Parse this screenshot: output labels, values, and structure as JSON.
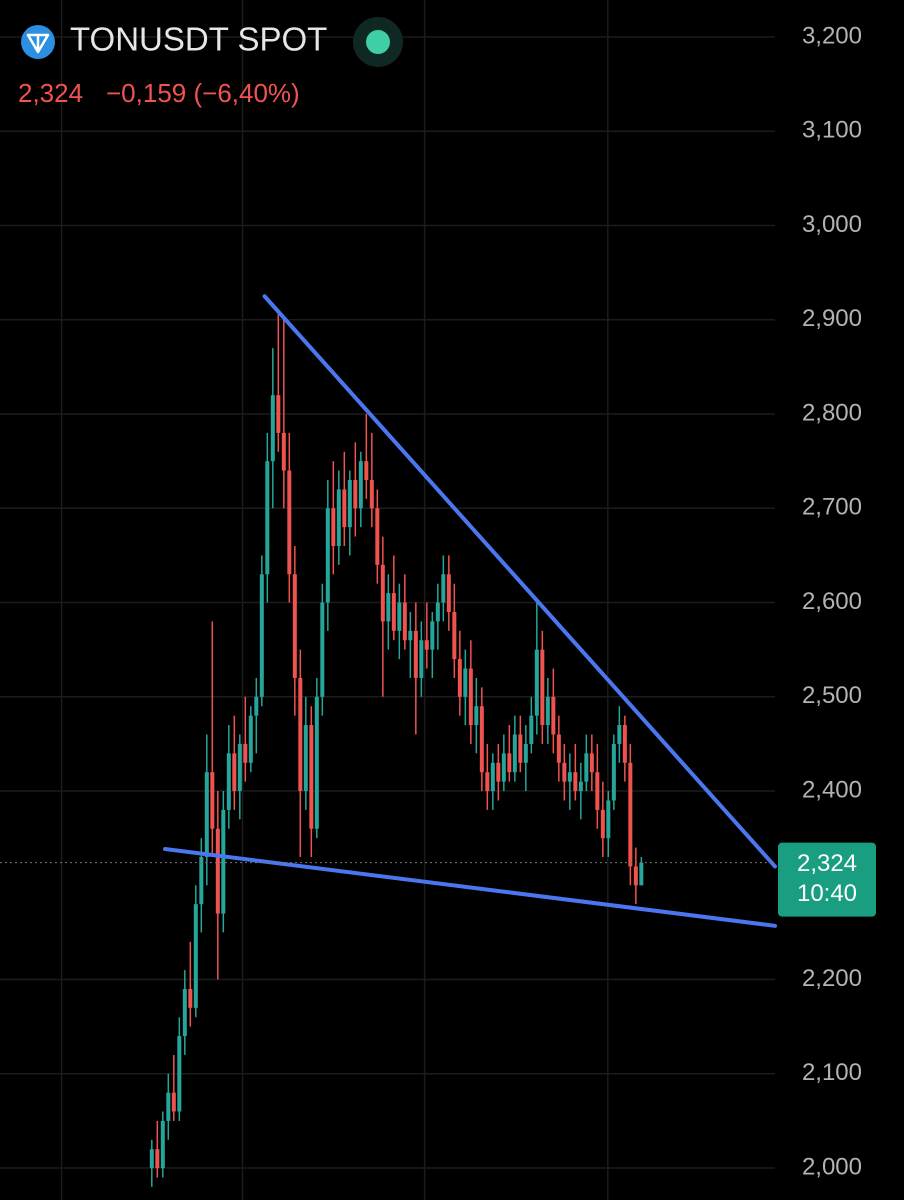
{
  "header": {
    "symbol": "TONUSDT SPOT",
    "price": "2,324",
    "change": "−0,159 (−6,40%)"
  },
  "chart_data": {
    "type": "candlestick",
    "ylim": [
      1.9661,
      3.2393
    ],
    "xlim": [
      -27.6,
      113.3
    ],
    "yticks": [
      {
        "value": 3.2,
        "label": "3,200"
      },
      {
        "value": 3.1,
        "label": "3,100"
      },
      {
        "value": 3.0,
        "label": "3,000"
      },
      {
        "value": 2.9,
        "label": "2,900"
      },
      {
        "value": 2.8,
        "label": "2,800"
      },
      {
        "value": 2.7,
        "label": "2,700"
      },
      {
        "value": 2.6,
        "label": "2,600"
      },
      {
        "value": 2.5,
        "label": "2,500"
      },
      {
        "value": 2.4,
        "label": "2,400"
      },
      {
        "value": 2.2,
        "label": "2,200"
      },
      {
        "value": 2.1,
        "label": "2,100"
      },
      {
        "value": 2.0,
        "label": "2,000"
      }
    ],
    "xgrid": [
      -16.4,
      16.5,
      49.6,
      82.9
    ],
    "grid": true,
    "up_color": "#26a69a",
    "down_color": "#ef5350",
    "ohlc": [
      [
        2.0,
        2.03,
        1.98,
        2.02
      ],
      [
        2.02,
        2.05,
        1.99,
        2.0
      ],
      [
        2.0,
        2.06,
        1.99,
        2.05
      ],
      [
        2.05,
        2.1,
        2.03,
        2.08
      ],
      [
        2.08,
        2.12,
        2.05,
        2.06
      ],
      [
        2.06,
        2.16,
        2.05,
        2.14
      ],
      [
        2.14,
        2.21,
        2.12,
        2.19
      ],
      [
        2.19,
        2.24,
        2.15,
        2.17
      ],
      [
        2.17,
        2.3,
        2.16,
        2.28
      ],
      [
        2.28,
        2.35,
        2.25,
        2.33
      ],
      [
        2.33,
        2.46,
        2.3,
        2.42
      ],
      [
        2.42,
        2.58,
        2.33,
        2.36
      ],
      [
        2.36,
        2.4,
        2.2,
        2.27
      ],
      [
        2.27,
        2.4,
        2.25,
        2.38
      ],
      [
        2.38,
        2.47,
        2.36,
        2.44
      ],
      [
        2.44,
        2.48,
        2.38,
        2.4
      ],
      [
        2.4,
        2.46,
        2.37,
        2.45
      ],
      [
        2.45,
        2.5,
        2.41,
        2.43
      ],
      [
        2.43,
        2.49,
        2.42,
        2.48
      ],
      [
        2.48,
        2.52,
        2.44,
        2.5
      ],
      [
        2.5,
        2.65,
        2.49,
        2.63
      ],
      [
        2.63,
        2.78,
        2.6,
        2.75
      ],
      [
        2.75,
        2.87,
        2.7,
        2.82
      ],
      [
        2.82,
        2.91,
        2.76,
        2.78
      ],
      [
        2.78,
        2.9,
        2.7,
        2.74
      ],
      [
        2.74,
        2.78,
        2.6,
        2.63
      ],
      [
        2.63,
        2.66,
        2.48,
        2.52
      ],
      [
        2.52,
        2.55,
        2.33,
        2.4
      ],
      [
        2.4,
        2.5,
        2.38,
        2.47
      ],
      [
        2.47,
        2.49,
        2.33,
        2.36
      ],
      [
        2.36,
        2.52,
        2.35,
        2.5
      ],
      [
        2.5,
        2.62,
        2.48,
        2.6
      ],
      [
        2.6,
        2.73,
        2.57,
        2.7
      ],
      [
        2.7,
        2.75,
        2.63,
        2.66
      ],
      [
        2.66,
        2.74,
        2.64,
        2.72
      ],
      [
        2.72,
        2.76,
        2.66,
        2.68
      ],
      [
        2.68,
        2.74,
        2.65,
        2.73
      ],
      [
        2.73,
        2.77,
        2.67,
        2.7
      ],
      [
        2.7,
        2.76,
        2.68,
        2.75
      ],
      [
        2.75,
        2.8,
        2.71,
        2.73
      ],
      [
        2.73,
        2.78,
        2.68,
        2.7
      ],
      [
        2.7,
        2.72,
        2.62,
        2.64
      ],
      [
        2.64,
        2.67,
        2.5,
        2.58
      ],
      [
        2.58,
        2.63,
        2.55,
        2.61
      ],
      [
        2.61,
        2.65,
        2.56,
        2.57
      ],
      [
        2.57,
        2.62,
        2.54,
        2.6
      ],
      [
        2.6,
        2.63,
        2.55,
        2.56
      ],
      [
        2.56,
        2.59,
        2.52,
        2.57
      ],
      [
        2.57,
        2.6,
        2.46,
        2.52
      ],
      [
        2.52,
        2.58,
        2.5,
        2.56
      ],
      [
        2.56,
        2.6,
        2.53,
        2.55
      ],
      [
        2.55,
        2.59,
        2.52,
        2.58
      ],
      [
        2.58,
        2.62,
        2.55,
        2.6
      ],
      [
        2.6,
        2.65,
        2.58,
        2.63
      ],
      [
        2.63,
        2.65,
        2.57,
        2.59
      ],
      [
        2.59,
        2.62,
        2.52,
        2.54
      ],
      [
        2.54,
        2.57,
        2.48,
        2.5
      ],
      [
        2.5,
        2.55,
        2.47,
        2.53
      ],
      [
        2.53,
        2.56,
        2.45,
        2.47
      ],
      [
        2.47,
        2.52,
        2.44,
        2.49
      ],
      [
        2.49,
        2.51,
        2.4,
        2.42
      ],
      [
        2.42,
        2.45,
        2.38,
        2.4
      ],
      [
        2.4,
        2.44,
        2.38,
        2.43
      ],
      [
        2.43,
        2.45,
        2.39,
        2.41
      ],
      [
        2.41,
        2.46,
        2.4,
        2.44
      ],
      [
        2.44,
        2.47,
        2.41,
        2.42
      ],
      [
        2.42,
        2.48,
        2.41,
        2.46
      ],
      [
        2.46,
        2.48,
        2.42,
        2.43
      ],
      [
        2.43,
        2.47,
        2.4,
        2.45
      ],
      [
        2.45,
        2.5,
        2.44,
        2.48
      ],
      [
        2.48,
        2.6,
        2.46,
        2.55
      ],
      [
        2.55,
        2.57,
        2.45,
        2.47
      ],
      [
        2.47,
        2.52,
        2.45,
        2.5
      ],
      [
        2.5,
        2.53,
        2.44,
        2.46
      ],
      [
        2.46,
        2.48,
        2.41,
        2.43
      ],
      [
        2.43,
        2.45,
        2.39,
        2.41
      ],
      [
        2.41,
        2.44,
        2.38,
        2.42
      ],
      [
        2.42,
        2.45,
        2.39,
        2.4
      ],
      [
        2.4,
        2.43,
        2.37,
        2.41
      ],
      [
        2.41,
        2.46,
        2.4,
        2.44
      ],
      [
        2.44,
        2.46,
        2.4,
        2.42
      ],
      [
        2.42,
        2.45,
        2.36,
        2.38
      ],
      [
        2.38,
        2.41,
        2.33,
        2.35
      ],
      [
        2.35,
        2.4,
        2.33,
        2.39
      ],
      [
        2.39,
        2.46,
        2.38,
        2.45
      ],
      [
        2.45,
        2.49,
        2.43,
        2.47
      ],
      [
        2.47,
        2.48,
        2.41,
        2.43
      ],
      [
        2.43,
        2.45,
        2.3,
        2.32
      ],
      [
        2.32,
        2.34,
        2.28,
        2.3
      ],
      [
        2.3,
        2.33,
        2.3,
        2.324
      ]
    ],
    "trend_color": "#4a76f0",
    "trend_lines": [
      {
        "x": [
          20.5,
          113.3
        ],
        "y": [
          2.925,
          2.32
        ]
      },
      {
        "x": [
          2.4,
          113.3
        ],
        "y": [
          2.3385,
          2.257
        ]
      }
    ],
    "last_price": {
      "value": 2.324,
      "label": "2,324",
      "time": "10:40",
      "color": "#1a9e82"
    }
  }
}
